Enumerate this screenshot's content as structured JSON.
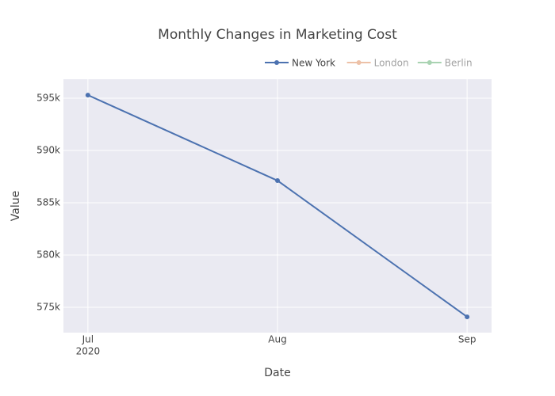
{
  "chart_data": {
    "type": "line",
    "title": "Monthly Changes in Marketing Cost",
    "x_label": "Date",
    "y_label": "Value",
    "x": [
      "2020-07-01",
      "2020-08-01",
      "2020-09-01"
    ],
    "series": [
      {
        "name": "New York",
        "color": "#4c72b0",
        "values": [
          595300,
          587120,
          574090
        ],
        "visible": true
      },
      {
        "name": "London",
        "color": "#dd8452",
        "values": [
          null,
          null,
          null
        ],
        "visible": "legendonly"
      },
      {
        "name": "Berlin",
        "color": "#55a868",
        "values": [
          null,
          null,
          null
        ],
        "visible": "legendonly"
      }
    ],
    "xlim": [
      "2020-06-27",
      "2020-09-05"
    ],
    "xticks": [
      {
        "value": "2020-07-01",
        "label": "Jul",
        "year": "2020"
      },
      {
        "value": "2020-08-01",
        "label": "Aug"
      },
      {
        "value": "2020-09-01",
        "label": "Sep"
      }
    ],
    "ylim": [
      572580,
      596820
    ],
    "yticks": [
      {
        "value": 575000,
        "label": "575k"
      },
      {
        "value": 580000,
        "label": "580k"
      },
      {
        "value": 585000,
        "label": "585k"
      },
      {
        "value": 590000,
        "label": "590k"
      },
      {
        "value": 595000,
        "label": "595k"
      }
    ],
    "grid": true,
    "legend": "top-right"
  }
}
